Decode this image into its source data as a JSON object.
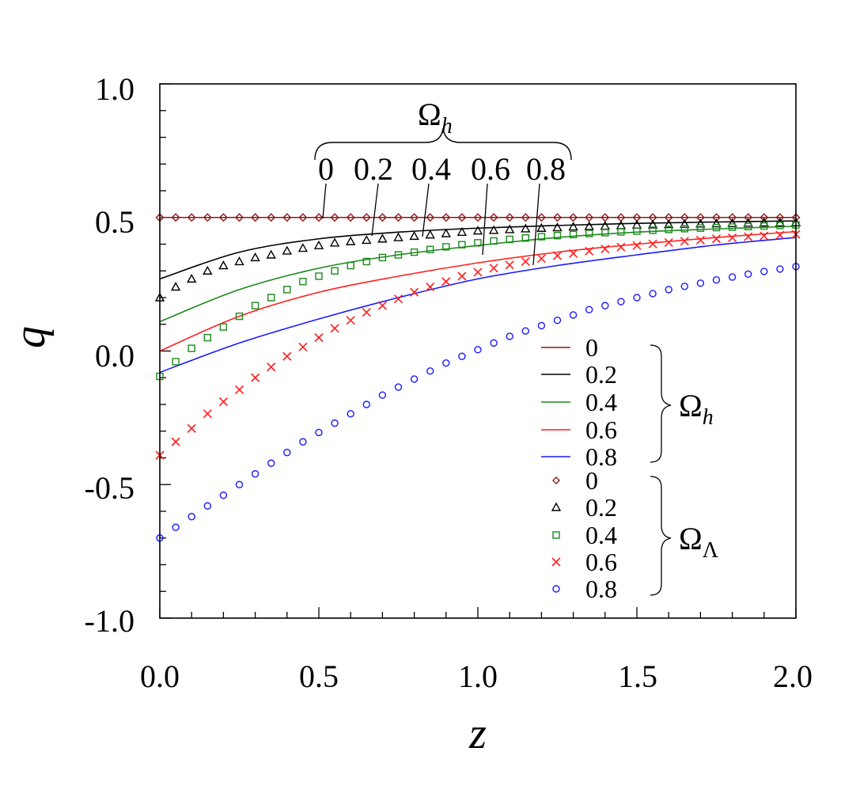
{
  "chart_data": {
    "type": "line",
    "xlabel": "z",
    "ylabel": "q",
    "xlim": [
      0,
      2
    ],
    "ylim": [
      -1,
      1
    ],
    "x_ticks": [
      "0.0",
      "0.5",
      "1.0",
      "1.5",
      "2.0"
    ],
    "y_ticks": [
      "1.0",
      "0.5",
      "0.0",
      "-0.5",
      "-1.0"
    ],
    "top_annotation": {
      "symbol": "Ω",
      "subscript": "h",
      "labels": [
        "0",
        "0.2",
        "0.4",
        "0.6",
        "0.8"
      ]
    },
    "legend_groups": [
      {
        "symbol": "Ω",
        "subscript": "h",
        "kind": "line",
        "entries": [
          "0",
          "0.2",
          "0.4",
          "0.6",
          "0.8"
        ]
      },
      {
        "symbol": "Ω",
        "subscript": "Λ",
        "kind": "marker",
        "entries": [
          "0",
          "0.2",
          "0.4",
          "0.6",
          "0.8"
        ]
      }
    ],
    "line_series": [
      {
        "name": "0",
        "color": "#8b1a1a",
        "x": [
          0,
          0.25,
          0.5,
          0.75,
          1.0,
          1.25,
          1.5,
          1.75,
          2.0
        ],
        "values": [
          0.5,
          0.5,
          0.5,
          0.5,
          0.5,
          0.5,
          0.5,
          0.5,
          0.5
        ]
      },
      {
        "name": "0.2",
        "color": "#000000",
        "x": [
          0,
          0.25,
          0.5,
          0.75,
          1.0,
          1.25,
          1.5,
          1.75,
          2.0
        ],
        "values": [
          0.27,
          0.37,
          0.42,
          0.445,
          0.46,
          0.47,
          0.478,
          0.483,
          0.487
        ]
      },
      {
        "name": "0.4",
        "color": "#1a8a1a",
        "x": [
          0,
          0.25,
          0.5,
          0.75,
          1.0,
          1.25,
          1.5,
          1.75,
          2.0
        ],
        "values": [
          0.11,
          0.23,
          0.31,
          0.36,
          0.395,
          0.425,
          0.445,
          0.457,
          0.467
        ]
      },
      {
        "name": "0.6",
        "color": "#ff2020",
        "x": [
          0,
          0.25,
          0.5,
          0.75,
          1.0,
          1.25,
          1.5,
          1.75,
          2.0
        ],
        "values": [
          0.0,
          0.13,
          0.22,
          0.28,
          0.33,
          0.37,
          0.4,
          0.425,
          0.447
        ]
      },
      {
        "name": "0.8",
        "color": "#1a1aff",
        "x": [
          0,
          0.25,
          0.5,
          0.75,
          1.0,
          1.25,
          1.5,
          1.75,
          2.0
        ],
        "values": [
          -0.08,
          0.03,
          0.12,
          0.2,
          0.27,
          0.32,
          0.36,
          0.397,
          0.425
        ]
      }
    ],
    "marker_series": [
      {
        "name": "0",
        "marker": "diamond",
        "color": "#8b1a1a",
        "x_start": 0,
        "x_step": 0.05,
        "values": [
          0.5,
          0.5,
          0.5,
          0.5,
          0.5,
          0.5,
          0.5,
          0.5,
          0.5,
          0.5,
          0.5,
          0.5,
          0.5,
          0.5,
          0.5,
          0.5,
          0.5,
          0.5,
          0.5,
          0.5,
          0.5,
          0.5,
          0.5,
          0.5,
          0.5,
          0.5,
          0.5,
          0.5,
          0.5,
          0.5,
          0.5,
          0.5,
          0.5,
          0.5,
          0.5,
          0.5,
          0.5,
          0.5,
          0.5,
          0.5,
          0.5
        ]
      },
      {
        "name": "0.2",
        "marker": "triangle",
        "color": "#000000",
        "x_start": 0,
        "x_step": 0.05,
        "values": [
          0.2,
          0.24,
          0.27,
          0.3,
          0.32,
          0.335,
          0.35,
          0.36,
          0.375,
          0.385,
          0.395,
          0.405,
          0.41,
          0.415,
          0.42,
          0.425,
          0.43,
          0.435,
          0.44,
          0.445,
          0.45,
          0.452,
          0.455,
          0.458,
          0.46,
          0.462,
          0.465,
          0.467,
          0.468,
          0.47,
          0.472,
          0.473,
          0.474,
          0.475,
          0.476,
          0.477,
          0.478,
          0.479,
          0.48,
          0.48,
          0.481
        ]
      },
      {
        "name": "0.4",
        "marker": "square",
        "color": "#1a8a1a",
        "x_start": 0,
        "x_step": 0.05,
        "values": [
          -0.095,
          -0.04,
          0.01,
          0.05,
          0.09,
          0.13,
          0.17,
          0.2,
          0.23,
          0.26,
          0.28,
          0.3,
          0.32,
          0.335,
          0.35,
          0.36,
          0.37,
          0.38,
          0.39,
          0.398,
          0.405,
          0.412,
          0.418,
          0.423,
          0.428,
          0.432,
          0.436,
          0.44,
          0.443,
          0.446,
          0.449,
          0.452,
          0.455,
          0.458,
          0.46,
          0.462,
          0.464,
          0.466,
          0.468,
          0.47,
          0.472
        ]
      },
      {
        "name": "0.6",
        "marker": "x",
        "color": "#ff2020",
        "x_start": 0,
        "x_step": 0.05,
        "values": [
          -0.39,
          -0.34,
          -0.29,
          -0.235,
          -0.19,
          -0.145,
          -0.1,
          -0.06,
          -0.02,
          0.015,
          0.05,
          0.085,
          0.115,
          0.145,
          0.17,
          0.195,
          0.22,
          0.24,
          0.26,
          0.28,
          0.295,
          0.31,
          0.322,
          0.335,
          0.346,
          0.357,
          0.365,
          0.374,
          0.382,
          0.389,
          0.395,
          0.401,
          0.406,
          0.411,
          0.415,
          0.42,
          0.424,
          0.428,
          0.431,
          0.434,
          0.437
        ]
      },
      {
        "name": "0.8",
        "marker": "circle",
        "color": "#1a1aff",
        "x_start": 0,
        "x_step": 0.05,
        "values": [
          -0.7,
          -0.66,
          -0.62,
          -0.58,
          -0.54,
          -0.5,
          -0.46,
          -0.42,
          -0.38,
          -0.34,
          -0.305,
          -0.27,
          -0.235,
          -0.2,
          -0.165,
          -0.135,
          -0.105,
          -0.075,
          -0.045,
          -0.02,
          0.005,
          0.03,
          0.055,
          0.075,
          0.095,
          0.115,
          0.135,
          0.155,
          0.17,
          0.185,
          0.2,
          0.215,
          0.23,
          0.242,
          0.254,
          0.266,
          0.277,
          0.288,
          0.298,
          0.307,
          0.316
        ]
      }
    ]
  }
}
